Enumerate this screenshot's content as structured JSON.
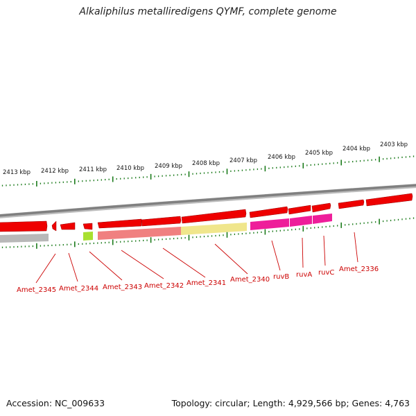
{
  "header": {
    "title": "Alkaliphilus metalliredigens QYMF, complete genome"
  },
  "footer": {
    "accession": "Accession: NC_009633",
    "topology": "Topology: circular; Length: 4,929,566 bp; Genes: 4,763"
  },
  "scale_labels": [
    "2413 kbp",
    "2412 kbp",
    "2411 kbp",
    "2410 kbp",
    "2409 kbp",
    "2408 kbp",
    "2407 kbp",
    "2406 kbp",
    "2405 kbp",
    "2404 kbp",
    "2403 kbp"
  ],
  "gene_labels": [
    "Amet_2345",
    "Amet_2344",
    "Amet_2343",
    "Amet_2342",
    "Amet_2341",
    "Amet_2340",
    "ruvB",
    "ruvA",
    "ruvC",
    "Amet_2336"
  ],
  "colors": {
    "cds": "#ee0000",
    "backbone": "#808080",
    "ticks": "#1a7a1a",
    "label_text": "#cc0000",
    "cog_grey": "#b8b8b8",
    "cog_green": "#a8e030",
    "cog_salmon": "#f08080",
    "cog_yellow": "#f0e68c",
    "cog_magenta": "#ee1e9a"
  }
}
